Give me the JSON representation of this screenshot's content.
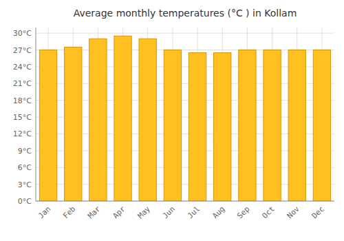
{
  "chart_data": {
    "type": "bar",
    "title": "Average monthly temperatures (°C ) in Kollam",
    "categories": [
      "Jan",
      "Feb",
      "Mar",
      "Apr",
      "May",
      "Jun",
      "Jul",
      "Aug",
      "Sep",
      "Oct",
      "Nov",
      "Dec"
    ],
    "values": [
      27.0,
      27.5,
      29.0,
      29.5,
      29.0,
      27.0,
      26.5,
      26.5,
      27.0,
      27.0,
      27.0,
      27.0
    ],
    "color": "#FFC020",
    "ylim": [
      0,
      31
    ],
    "yticks": [
      {
        "value": 0,
        "label": "0°C"
      },
      {
        "value": 3,
        "label": "3°C"
      },
      {
        "value": 6,
        "label": "6°C"
      },
      {
        "value": 9,
        "label": "9°C"
      },
      {
        "value": 12,
        "label": "12°C"
      },
      {
        "value": 15,
        "label": "15°C"
      },
      {
        "value": 18,
        "label": "18°C"
      },
      {
        "value": 21,
        "label": "21°C"
      },
      {
        "value": 24,
        "label": "24°C"
      },
      {
        "value": 27,
        "label": "27°C"
      },
      {
        "value": 30,
        "label": "30°C"
      }
    ],
    "grid": true
  }
}
